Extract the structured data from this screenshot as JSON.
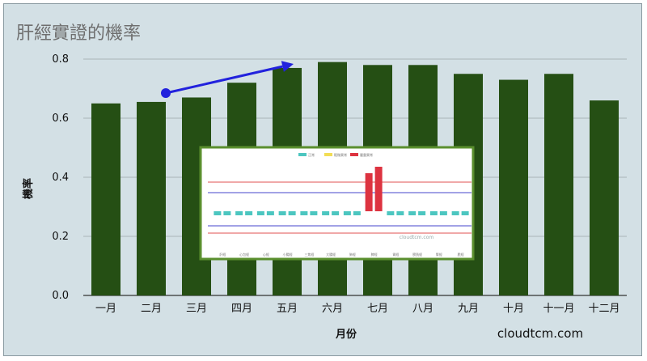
{
  "chart_data": {
    "type": "bar",
    "title": "肝經實證的機率",
    "xlabel": "月份",
    "ylabel": "機率",
    "categories": [
      "一月",
      "二月",
      "三月",
      "四月",
      "五月",
      "六月",
      "七月",
      "八月",
      "九月",
      "十月",
      "十一月",
      "十二月"
    ],
    "values": [
      0.65,
      0.655,
      0.67,
      0.72,
      0.77,
      0.79,
      0.78,
      0.78,
      0.75,
      0.73,
      0.75,
      0.66
    ],
    "ylim": [
      0,
      0.8
    ],
    "yticks": [
      "0.0",
      "0.2",
      "0.4",
      "0.6",
      "0.8"
    ],
    "grid": true,
    "bar_color": "#254f14",
    "annotation_arrow": {
      "from_category": "二月",
      "to_category": "五月",
      "color": "#2222dd"
    }
  },
  "watermark": "cloudtcm.com",
  "inset": {
    "border_color": "#5a8f2e",
    "legend": [
      "正常",
      "輕微異常",
      "嚴重異常"
    ],
    "legend_colors": [
      "#4cc6c0",
      "#f2dd55",
      "#dd3340"
    ],
    "labels": [
      "肝經",
      "心包經",
      "心經",
      "小腸經",
      "三焦經",
      "大腸經",
      "肺經",
      "脾經",
      "胃經",
      "膀胱經",
      "腎經",
      "膽經"
    ],
    "watermark": "cloudtcm.com"
  }
}
